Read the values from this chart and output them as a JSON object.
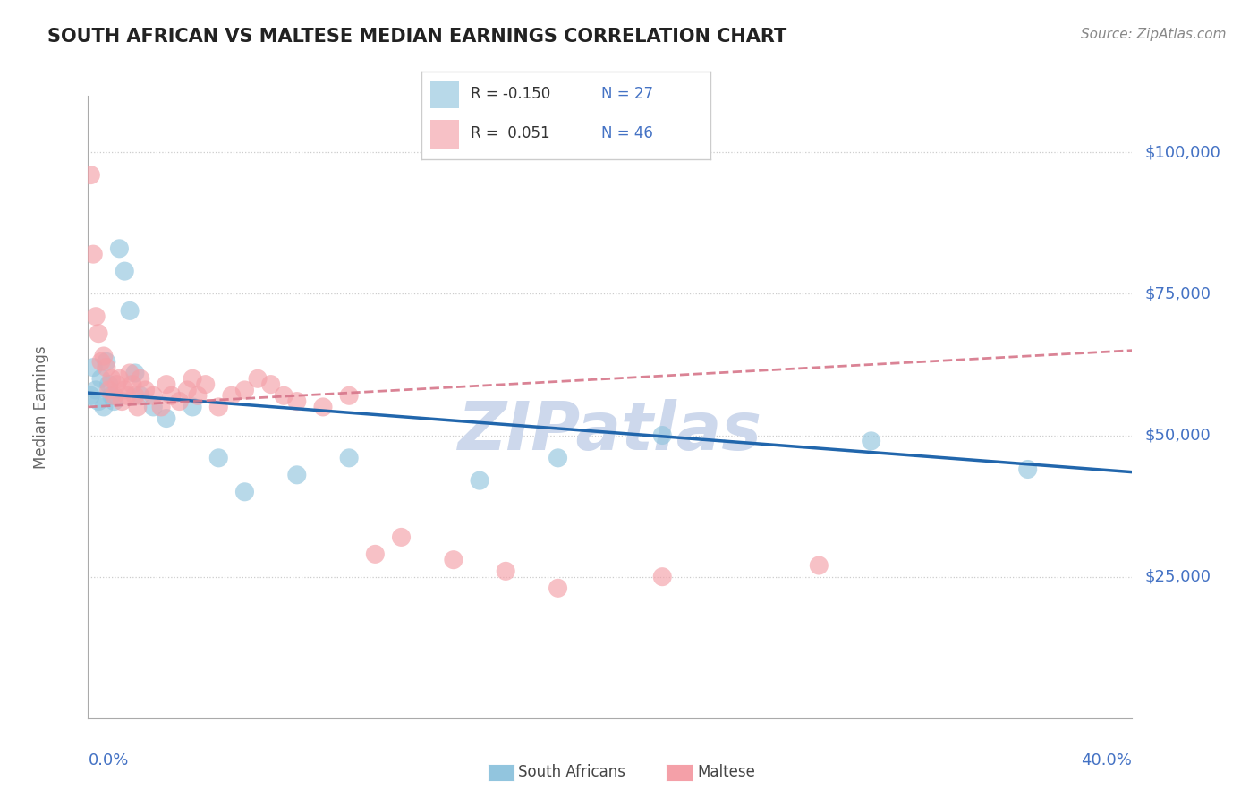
{
  "title": "SOUTH AFRICAN VS MALTESE MEDIAN EARNINGS CORRELATION CHART",
  "source": "Source: ZipAtlas.com",
  "ylabel": "Median Earnings",
  "ytick_labels": [
    "$25,000",
    "$50,000",
    "$75,000",
    "$100,000"
  ],
  "ytick_values": [
    25000,
    50000,
    75000,
    100000
  ],
  "legend_sa": "South Africans",
  "legend_ma": "Maltese",
  "xmin": 0.0,
  "xmax": 0.4,
  "ymin": 0,
  "ymax": 110000,
  "bg_color": "#ffffff",
  "sa_scatter_color": "#92c5de",
  "ma_scatter_color": "#f4a0a8",
  "sa_line_color": "#2166ac",
  "ma_line_color": "#d6768a",
  "grid_color": "#cccccc",
  "title_color": "#222222",
  "blue_label_color": "#4472c4",
  "watermark_color": "#cdd8ec",
  "sa_r": "-0.150",
  "sa_n": "27",
  "ma_r": "0.051",
  "ma_n": "46",
  "sa_x": [
    0.001,
    0.002,
    0.003,
    0.004,
    0.005,
    0.006,
    0.007,
    0.008,
    0.009,
    0.01,
    0.012,
    0.014,
    0.016,
    0.018,
    0.02,
    0.025,
    0.03,
    0.04,
    0.05,
    0.06,
    0.08,
    0.1,
    0.15,
    0.18,
    0.22,
    0.3,
    0.36
  ],
  "sa_y": [
    57000,
    62000,
    58000,
    56000,
    60000,
    55000,
    63000,
    59000,
    57000,
    56000,
    83000,
    79000,
    72000,
    61000,
    57000,
    55000,
    53000,
    55000,
    46000,
    40000,
    43000,
    46000,
    42000,
    46000,
    50000,
    49000,
    44000
  ],
  "ma_x": [
    0.001,
    0.002,
    0.003,
    0.004,
    0.005,
    0.006,
    0.007,
    0.008,
    0.009,
    0.01,
    0.011,
    0.012,
    0.013,
    0.014,
    0.015,
    0.016,
    0.017,
    0.018,
    0.019,
    0.02,
    0.022,
    0.025,
    0.028,
    0.03,
    0.032,
    0.035,
    0.038,
    0.04,
    0.042,
    0.045,
    0.05,
    0.055,
    0.06,
    0.065,
    0.07,
    0.075,
    0.08,
    0.09,
    0.1,
    0.11,
    0.12,
    0.14,
    0.16,
    0.18,
    0.22,
    0.28
  ],
  "ma_y": [
    96000,
    82000,
    71000,
    68000,
    63000,
    64000,
    62000,
    58000,
    60000,
    57000,
    59000,
    60000,
    56000,
    58000,
    57000,
    61000,
    59000,
    57000,
    55000,
    60000,
    58000,
    57000,
    55000,
    59000,
    57000,
    56000,
    58000,
    60000,
    57000,
    59000,
    55000,
    57000,
    58000,
    60000,
    59000,
    57000,
    56000,
    55000,
    57000,
    29000,
    32000,
    28000,
    26000,
    23000,
    25000,
    27000
  ]
}
